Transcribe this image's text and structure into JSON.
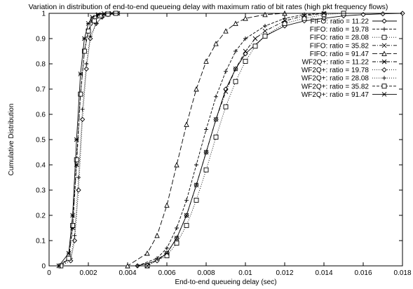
{
  "chart_data": {
    "type": "line",
    "title": "Variation in distribution of end-to-end queueing delay with maximum ratio of bit rates (high pkt frequency flows)",
    "xlabel": "End-to-end queueing delay (sec)",
    "ylabel": "Cumulative Distribution",
    "xlim": [
      0,
      0.018
    ],
    "ylim": [
      0,
      1
    ],
    "x_ticks": [
      "0",
      "0.002",
      "0.004",
      "0.006",
      "0.008",
      "0.01",
      "0.012",
      "0.014",
      "0.016",
      "0.018"
    ],
    "y_ticks": [
      "0",
      "0.1",
      "0.2",
      "0.3",
      "0.4",
      "0.5",
      "0.6",
      "0.7",
      "0.8",
      "0.9",
      "1"
    ],
    "legend_position": "top-right",
    "series": [
      {
        "name": "FIFO: ratio = 11.22",
        "marker": "diamond",
        "dash": "solid",
        "x": [
          0.0045,
          0.0055,
          0.006,
          0.0065,
          0.007,
          0.0075,
          0.008,
          0.0085,
          0.009,
          0.0095,
          0.01,
          0.011,
          0.012,
          0.013,
          0.014,
          0.015,
          0.016,
          0.017,
          0.018
        ],
        "y": [
          0,
          0.02,
          0.05,
          0.11,
          0.2,
          0.32,
          0.45,
          0.58,
          0.7,
          0.78,
          0.84,
          0.91,
          0.95,
          0.97,
          0.98,
          0.99,
          0.995,
          0.998,
          1
        ]
      },
      {
        "name": "FIFO: ratio = 19.78",
        "marker": "plus",
        "dash": "dashed",
        "x": [
          0.0045,
          0.0055,
          0.006,
          0.0065,
          0.007,
          0.0075,
          0.008,
          0.0085,
          0.009,
          0.0095,
          0.01,
          0.011,
          0.012,
          0.013,
          0.014
        ],
        "y": [
          0,
          0.03,
          0.07,
          0.15,
          0.26,
          0.4,
          0.54,
          0.67,
          0.77,
          0.85,
          0.9,
          0.95,
          0.98,
          0.995,
          1
        ]
      },
      {
        "name": "FIFO: ratio = 28.08",
        "marker": "square",
        "dash": "dotted",
        "x": [
          0.005,
          0.006,
          0.0065,
          0.007,
          0.0075,
          0.008,
          0.0085,
          0.009,
          0.0095,
          0.01,
          0.0105,
          0.011,
          0.012,
          0.013,
          0.014,
          0.015
        ],
        "y": [
          0,
          0.04,
          0.09,
          0.16,
          0.26,
          0.38,
          0.51,
          0.63,
          0.73,
          0.81,
          0.87,
          0.91,
          0.96,
          0.98,
          0.995,
          1
        ]
      },
      {
        "name": "FIFO: ratio = 35.82",
        "marker": "cross",
        "dash": "dashdot",
        "x": [
          0.005,
          0.006,
          0.0065,
          0.007,
          0.0075,
          0.008,
          0.0085,
          0.009,
          0.0095,
          0.01,
          0.0105,
          0.011,
          0.012,
          0.013,
          0.014
        ],
        "y": [
          0,
          0.05,
          0.11,
          0.2,
          0.32,
          0.45,
          0.58,
          0.69,
          0.78,
          0.85,
          0.9,
          0.93,
          0.97,
          0.99,
          1
        ]
      },
      {
        "name": "FIFO: ratio = 91.47",
        "marker": "triangle",
        "dash": "longdash",
        "x": [
          0.004,
          0.005,
          0.0055,
          0.006,
          0.0065,
          0.007,
          0.0075,
          0.008,
          0.0085,
          0.009,
          0.0095,
          0.01,
          0.011,
          0.012
        ],
        "y": [
          0,
          0.05,
          0.12,
          0.24,
          0.4,
          0.56,
          0.7,
          0.81,
          0.88,
          0.93,
          0.96,
          0.98,
          0.995,
          1
        ]
      },
      {
        "name": "WF2Q+: ratio = 11.22",
        "marker": "star",
        "dash": "dashdot",
        "x": [
          0.0005,
          0.001,
          0.0012,
          0.0014,
          0.0016,
          0.0018,
          0.002,
          0.0022,
          0.0025,
          0.003,
          0.0035
        ],
        "y": [
          0,
          0.03,
          0.15,
          0.4,
          0.68,
          0.85,
          0.93,
          0.97,
          0.99,
          0.998,
          1
        ]
      },
      {
        "name": "WF2Q+: ratio = 19.78",
        "marker": "diamond",
        "dash": "dotted",
        "x": [
          0.0006,
          0.0011,
          0.0013,
          0.0015,
          0.0017,
          0.0019,
          0.0021,
          0.0024,
          0.0027,
          0.003,
          0.0035
        ],
        "y": [
          0,
          0.02,
          0.1,
          0.3,
          0.58,
          0.78,
          0.9,
          0.96,
          0.985,
          0.995,
          1
        ]
      },
      {
        "name": "WF2Q+: ratio = 28.08",
        "marker": "plus",
        "dash": "dotted",
        "x": [
          0.0006,
          0.0011,
          0.0013,
          0.0015,
          0.0017,
          0.0019,
          0.0021,
          0.0024,
          0.0027,
          0.003,
          0.0035
        ],
        "y": [
          0,
          0.03,
          0.12,
          0.35,
          0.62,
          0.8,
          0.91,
          0.96,
          0.985,
          0.995,
          1
        ]
      },
      {
        "name": "WF2Q+: ratio = 35.82",
        "marker": "square",
        "dash": "dashed",
        "x": [
          0.0006,
          0.001,
          0.0012,
          0.0014,
          0.0016,
          0.0018,
          0.002,
          0.0023,
          0.0026,
          0.003,
          0.0034
        ],
        "y": [
          0,
          0.03,
          0.16,
          0.42,
          0.68,
          0.85,
          0.93,
          0.97,
          0.99,
          0.997,
          1
        ]
      },
      {
        "name": "WF2Q+: ratio = 91.47",
        "marker": "star",
        "dash": "solid",
        "x": [
          0.0005,
          0.001,
          0.0012,
          0.0014,
          0.0016,
          0.0018,
          0.002,
          0.0022,
          0.0025,
          0.0028,
          0.0032
        ],
        "y": [
          0,
          0.05,
          0.2,
          0.5,
          0.76,
          0.9,
          0.96,
          0.985,
          0.995,
          0.999,
          1
        ]
      }
    ]
  }
}
